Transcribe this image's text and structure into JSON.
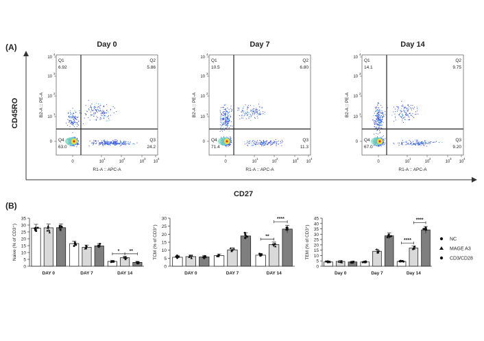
{
  "panel_a": {
    "label": "(A)",
    "y_axis_title": "CD45RO",
    "x_axis_title": "CD27",
    "plots": [
      {
        "title": "Day 0",
        "q1": "6.92",
        "q2": "5.86",
        "q3": "24.2",
        "q4": "63.0"
      },
      {
        "title": "Day 7",
        "q1": "10.5",
        "q2": "6.80",
        "q3": "11.3",
        "q4": "71.4"
      },
      {
        "title": "Day 14",
        "q1": "14.1",
        "q2": "9.75",
        "q3": "9.20",
        "q4": "67.0"
      }
    ],
    "quadrant_names": [
      "Q1",
      "Q2",
      "Q3",
      "Q4"
    ],
    "y_channel": "B2-A :: PE-A",
    "x_channel": "R1-A :: APC-A",
    "tick_labels": [
      "0",
      "10",
      "10",
      "10",
      "10"
    ],
    "tick_exponents": [
      "",
      "1",
      "2",
      "3",
      "4"
    ]
  },
  "panel_b": {
    "label": "(B)"
  },
  "legend": [
    {
      "name": "NC",
      "marker": "circle"
    },
    {
      "name": "MAGE A3",
      "marker": "triangle"
    },
    {
      "name": "CD3/CD28",
      "marker": "circle"
    }
  ],
  "colors": {
    "NC": "#ffffff",
    "MAGE A3": "#d9d9d9",
    "CD3/CD28": "#7f7f7f"
  },
  "chart_data": [
    {
      "type": "bar",
      "ylabel": "Naive (% of CD3⁺)",
      "categories": [
        "DAY 0",
        "DAY 7",
        "DAY 14"
      ],
      "ylim": [
        0,
        35
      ],
      "yticks": [
        0,
        5,
        10,
        15,
        20,
        25,
        30,
        35
      ],
      "series": [
        {
          "name": "NC",
          "values": [
            27.8,
            16.5,
            3.5
          ]
        },
        {
          "name": "MAGE A3",
          "values": [
            28.0,
            13.8,
            6.2
          ]
        },
        {
          "name": "CD3/CD28",
          "values": [
            28.1,
            14.8,
            2.8
          ]
        }
      ],
      "annotations": [
        {
          "category": "DAY 14",
          "between": [
            "NC",
            "MAGE A3"
          ],
          "text": "*"
        },
        {
          "category": "DAY 14",
          "between": [
            "MAGE A3",
            "CD3/CD28"
          ],
          "text": "**"
        }
      ]
    },
    {
      "type": "bar",
      "ylabel": "TCM (% of CD3⁺)",
      "categories": [
        "DAY 0",
        "DAY 7",
        "DAY 14"
      ],
      "ylim": [
        0,
        30
      ],
      "yticks": [
        0,
        5,
        10,
        15,
        20,
        25,
        30
      ],
      "series": [
        {
          "name": "NC",
          "values": [
            5.6,
            6.6,
            6.9
          ]
        },
        {
          "name": "MAGE A3",
          "values": [
            6.0,
            10.2,
            13.5
          ]
        },
        {
          "name": "CD3/CD28",
          "values": [
            5.8,
            18.9,
            23.2
          ]
        }
      ],
      "annotations": [
        {
          "category": "DAY 14",
          "between": [
            "NC",
            "MAGE A3"
          ],
          "text": "**"
        },
        {
          "category": "DAY 14",
          "between": [
            "MAGE A3",
            "CD3/CD28"
          ],
          "text": "****"
        }
      ]
    },
    {
      "type": "bar",
      "ylabel": "TEM (% of CD3⁺)",
      "categories": [
        "Day 0",
        "Day 7",
        "Day 14"
      ],
      "ylim": [
        0,
        45
      ],
      "yticks": [
        0,
        5,
        10,
        15,
        20,
        25,
        30,
        35,
        40,
        45
      ],
      "series": [
        {
          "name": "NC",
          "values": [
            4.0,
            4.0,
            4.5
          ]
        },
        {
          "name": "MAGE A3",
          "values": [
            4.5,
            14.0,
            17.0
          ]
        },
        {
          "name": "CD3/CD28",
          "values": [
            4.0,
            28.5,
            34.0
          ]
        }
      ],
      "annotations": [
        {
          "category": "Day 14",
          "between": [
            "NC",
            "MAGE A3"
          ],
          "text": "****"
        },
        {
          "category": "Day 14",
          "between": [
            "MAGE A3",
            "CD3/CD28"
          ],
          "text": "****"
        }
      ]
    }
  ]
}
